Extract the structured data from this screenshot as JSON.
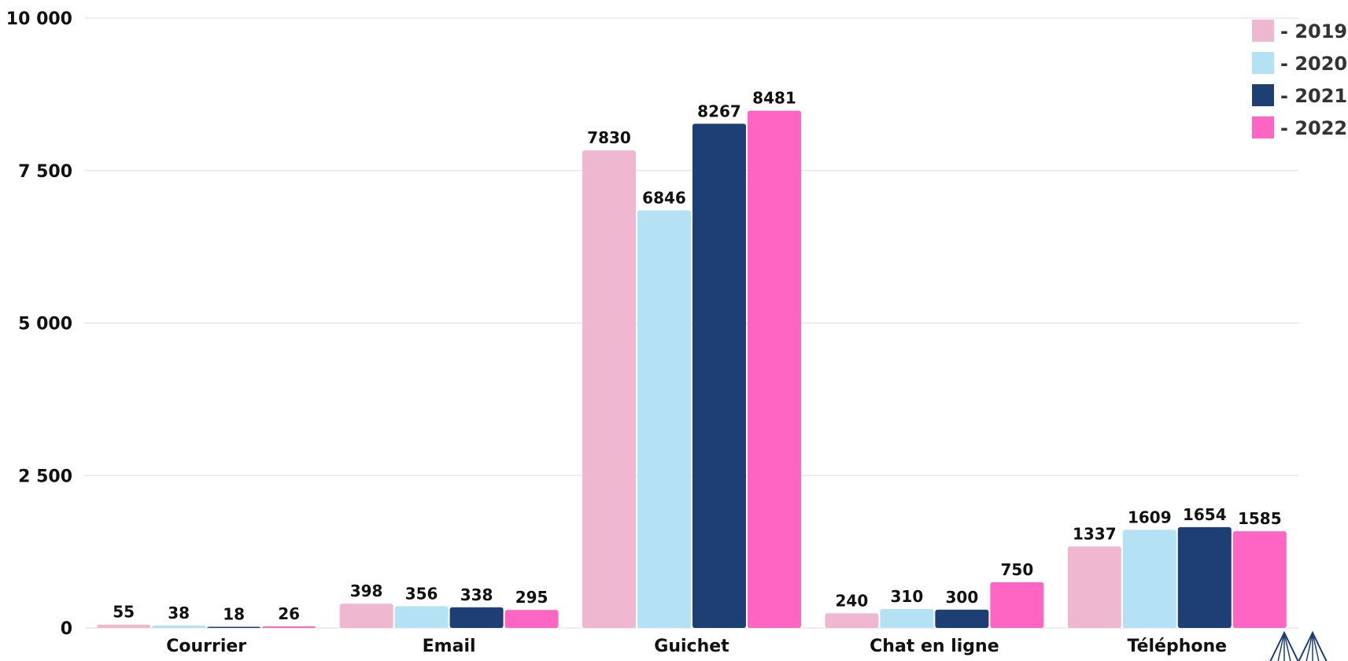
{
  "chart_data": {
    "type": "bar",
    "categories": [
      "Courrier",
      "Email",
      "Guichet",
      "Chat en ligne",
      "Téléphone"
    ],
    "series": [
      {
        "name": "- 2019",
        "color": "#F0B8D0",
        "values": [
          55,
          398,
          7830,
          240,
          1337
        ]
      },
      {
        "name": "- 2020",
        "color": "#B5E1F5",
        "values": [
          38,
          356,
          6846,
          310,
          1609
        ]
      },
      {
        "name": "- 2021",
        "color": "#1E3F73",
        "values": [
          18,
          338,
          8267,
          300,
          1654
        ]
      },
      {
        "name": "- 2022",
        "color": "#FF66C4",
        "values": [
          26,
          295,
          8481,
          750,
          1585
        ]
      }
    ],
    "y_ticks": [
      {
        "value": 0,
        "label": "0"
      },
      {
        "value": 2500,
        "label": "2 500"
      },
      {
        "value": 5000,
        "label": "5 000"
      },
      {
        "value": 7500,
        "label": "7 500"
      },
      {
        "value": 10000,
        "label": "10 000"
      }
    ],
    "ylim": [
      0,
      10000
    ],
    "title": "",
    "xlabel": "",
    "ylabel": "",
    "grid": true,
    "legend_position": "top-right",
    "logo": "tent-logo-icon"
  }
}
